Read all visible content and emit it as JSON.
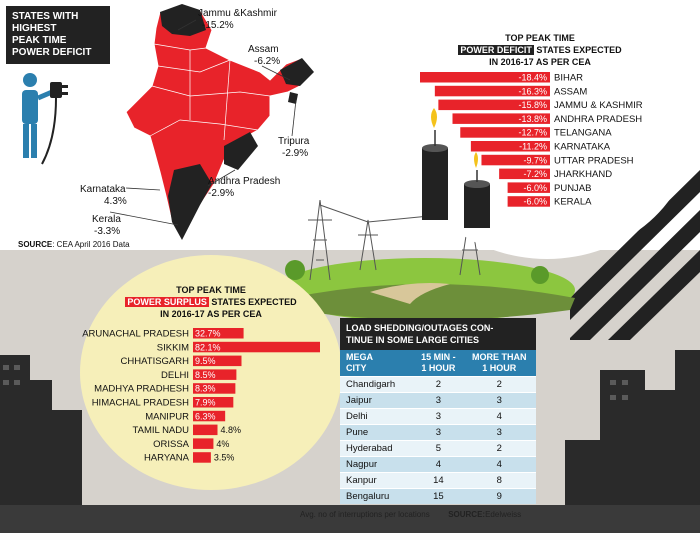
{
  "map_panel": {
    "title_lines": [
      "STATES WITH",
      "HIGHEST",
      "PEAK TIME",
      "POWER DEFICIT"
    ],
    "labels": [
      {
        "state": "Jammu &Kashmir",
        "value": "-15.2%"
      },
      {
        "state": "Assam",
        "value": "-6.2%"
      },
      {
        "state": "Tripura",
        "value": "-2.9%"
      },
      {
        "state": "Andhra Pradesh",
        "value": "-2.9%"
      },
      {
        "state": "Karnataka",
        "value": "4.3%"
      },
      {
        "state": "Kerala",
        "value": "-3.3%"
      }
    ],
    "source_label": "SOURCE",
    "source_text": ": CEA April 2016 Data"
  },
  "colors": {
    "deficit_red": "#e8232a",
    "map_black": "#222222",
    "surplus_bg": "#f6efb9",
    "table_blue": "#2b7fae"
  },
  "chart_data": [
    {
      "type": "bar",
      "orientation": "horizontal",
      "title_line1": "TOP PEAK TIME",
      "title_highlight": "POWER DEFICIT",
      "title_rest": " STATES EXPECTED",
      "title_line3": "IN 2016-17 AS PER CEA",
      "categories": [
        "BIHAR",
        "ASSAM",
        "JAMMU & KASHMIR",
        "ANDHRA PRADESH",
        "TELANGANA",
        "KARNATAKA",
        "UTTAR PRADESH",
        "JHARKHAND",
        "PUNJAB",
        "KERALA"
      ],
      "values": [
        -18.4,
        -16.3,
        -15.8,
        -13.8,
        -12.7,
        -11.2,
        -9.7,
        -7.2,
        -6.0,
        -6.0
      ],
      "value_labels": [
        "-18.4%",
        "-16.3%",
        "-15.8%",
        "-13.8%",
        "-12.7%",
        "-11.2%",
        "-9.7%",
        "-7.2%",
        "-6.0%",
        "-6.0%"
      ]
    },
    {
      "type": "bar",
      "orientation": "horizontal",
      "title_line1": "TOP PEAK TIME",
      "title_highlight": "POWER SURPLUS",
      "title_rest": " STATES EXPECTED",
      "title_line3": "IN 2016-17 AS PER CEA",
      "categories": [
        "ARUNACHAL PRADESH",
        "SIKKIM",
        "CHHATISGARH",
        "DELHI",
        "MADHYA PRADHESH",
        "HIMACHAL PRADESH",
        "MANIPUR",
        "TAMIL NADU",
        "ORISSA",
        "HARYANA"
      ],
      "values": [
        32.7,
        82.1,
        9.5,
        8.5,
        8.3,
        7.9,
        6.3,
        4.8,
        4.0,
        3.5
      ],
      "value_labels": [
        "32.7%",
        "82.1%",
        "9.5%",
        "8.5%",
        "8.3%",
        "7.9%",
        "6.3%",
        "4.8%",
        "4%",
        "3.5%"
      ]
    },
    {
      "type": "table",
      "title_line1": "LOAD SHEDDING/OUTAGES CON-",
      "title_line2": "TINUE IN SOME LARGE CITIES",
      "headers": [
        [
          "MEGA",
          "CITY"
        ],
        [
          "15 MIN -",
          "1 HOUR"
        ],
        [
          "MORE THAN",
          "1 HOUR"
        ]
      ],
      "rows": [
        [
          "Chandigarh",
          "2",
          "2"
        ],
        [
          "Jaipur",
          "3",
          "3"
        ],
        [
          "Delhi",
          "3",
          "4"
        ],
        [
          "Pune",
          "3",
          "3"
        ],
        [
          "Hyderabad",
          "5",
          "2"
        ],
        [
          "Nagpur",
          "4",
          "4"
        ],
        [
          "Kanpur",
          "14",
          "8"
        ],
        [
          "Bengaluru",
          "15",
          "9"
        ]
      ],
      "note": "Avg. no of interruptions per locations",
      "source_label": "SOURCE:",
      "source_text": "Edelweiss"
    }
  ]
}
